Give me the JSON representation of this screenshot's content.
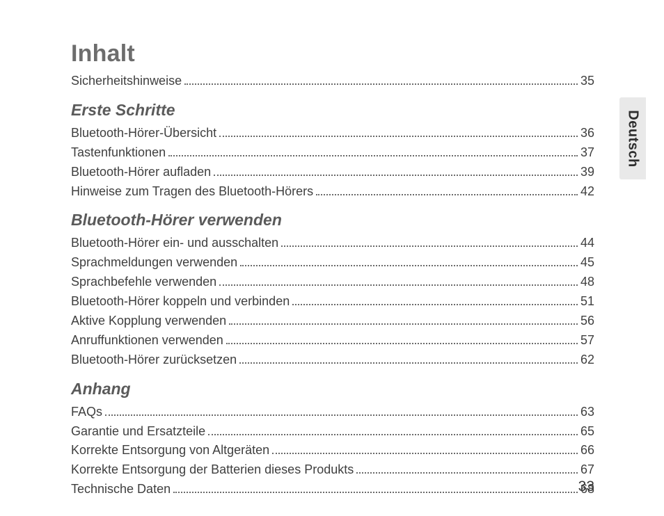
{
  "title": "Inhalt",
  "side_tab": "Deutsch",
  "page_number": "33",
  "preamble": [
    {
      "label": "Sicherheitshinweise",
      "page": "35"
    }
  ],
  "sections": [
    {
      "heading": "Erste Schritte",
      "items": [
        {
          "label": "Bluetooth-Hörer-Übersicht",
          "page": "36"
        },
        {
          "label": "Tastenfunktionen",
          "page": "37"
        },
        {
          "label": "Bluetooth-Hörer aufladen",
          "page": "39"
        },
        {
          "label": "Hinweise zum Tragen des Bluetooth-Hörers",
          "page": "42"
        }
      ]
    },
    {
      "heading": "Bluetooth-Hörer verwenden",
      "items": [
        {
          "label": "Bluetooth-Hörer ein- und ausschalten",
          "page": "44"
        },
        {
          "label": "Sprachmeldungen verwenden",
          "page": "45"
        },
        {
          "label": "Sprachbefehle verwenden",
          "page": "48"
        },
        {
          "label": "Bluetooth-Hörer koppeln und verbinden",
          "page": "51"
        },
        {
          "label": "Aktive Kopplung verwenden",
          "page": "56"
        },
        {
          "label": "Anruffunktionen verwenden",
          "page": "57"
        },
        {
          "label": "Bluetooth-Hörer zurücksetzen",
          "page": "62"
        }
      ]
    },
    {
      "heading": "Anhang",
      "items": [
        {
          "label": "FAQs",
          "page": "63"
        },
        {
          "label": "Garantie und Ersatzteile",
          "page": "65"
        },
        {
          "label": "Korrekte Entsorgung von Altgeräten",
          "page": "66"
        },
        {
          "label": "Korrekte Entsorgung der Batterien dieses Produkts",
          "page": "67"
        },
        {
          "label": "Technische Daten",
          "page": "68"
        }
      ]
    }
  ]
}
